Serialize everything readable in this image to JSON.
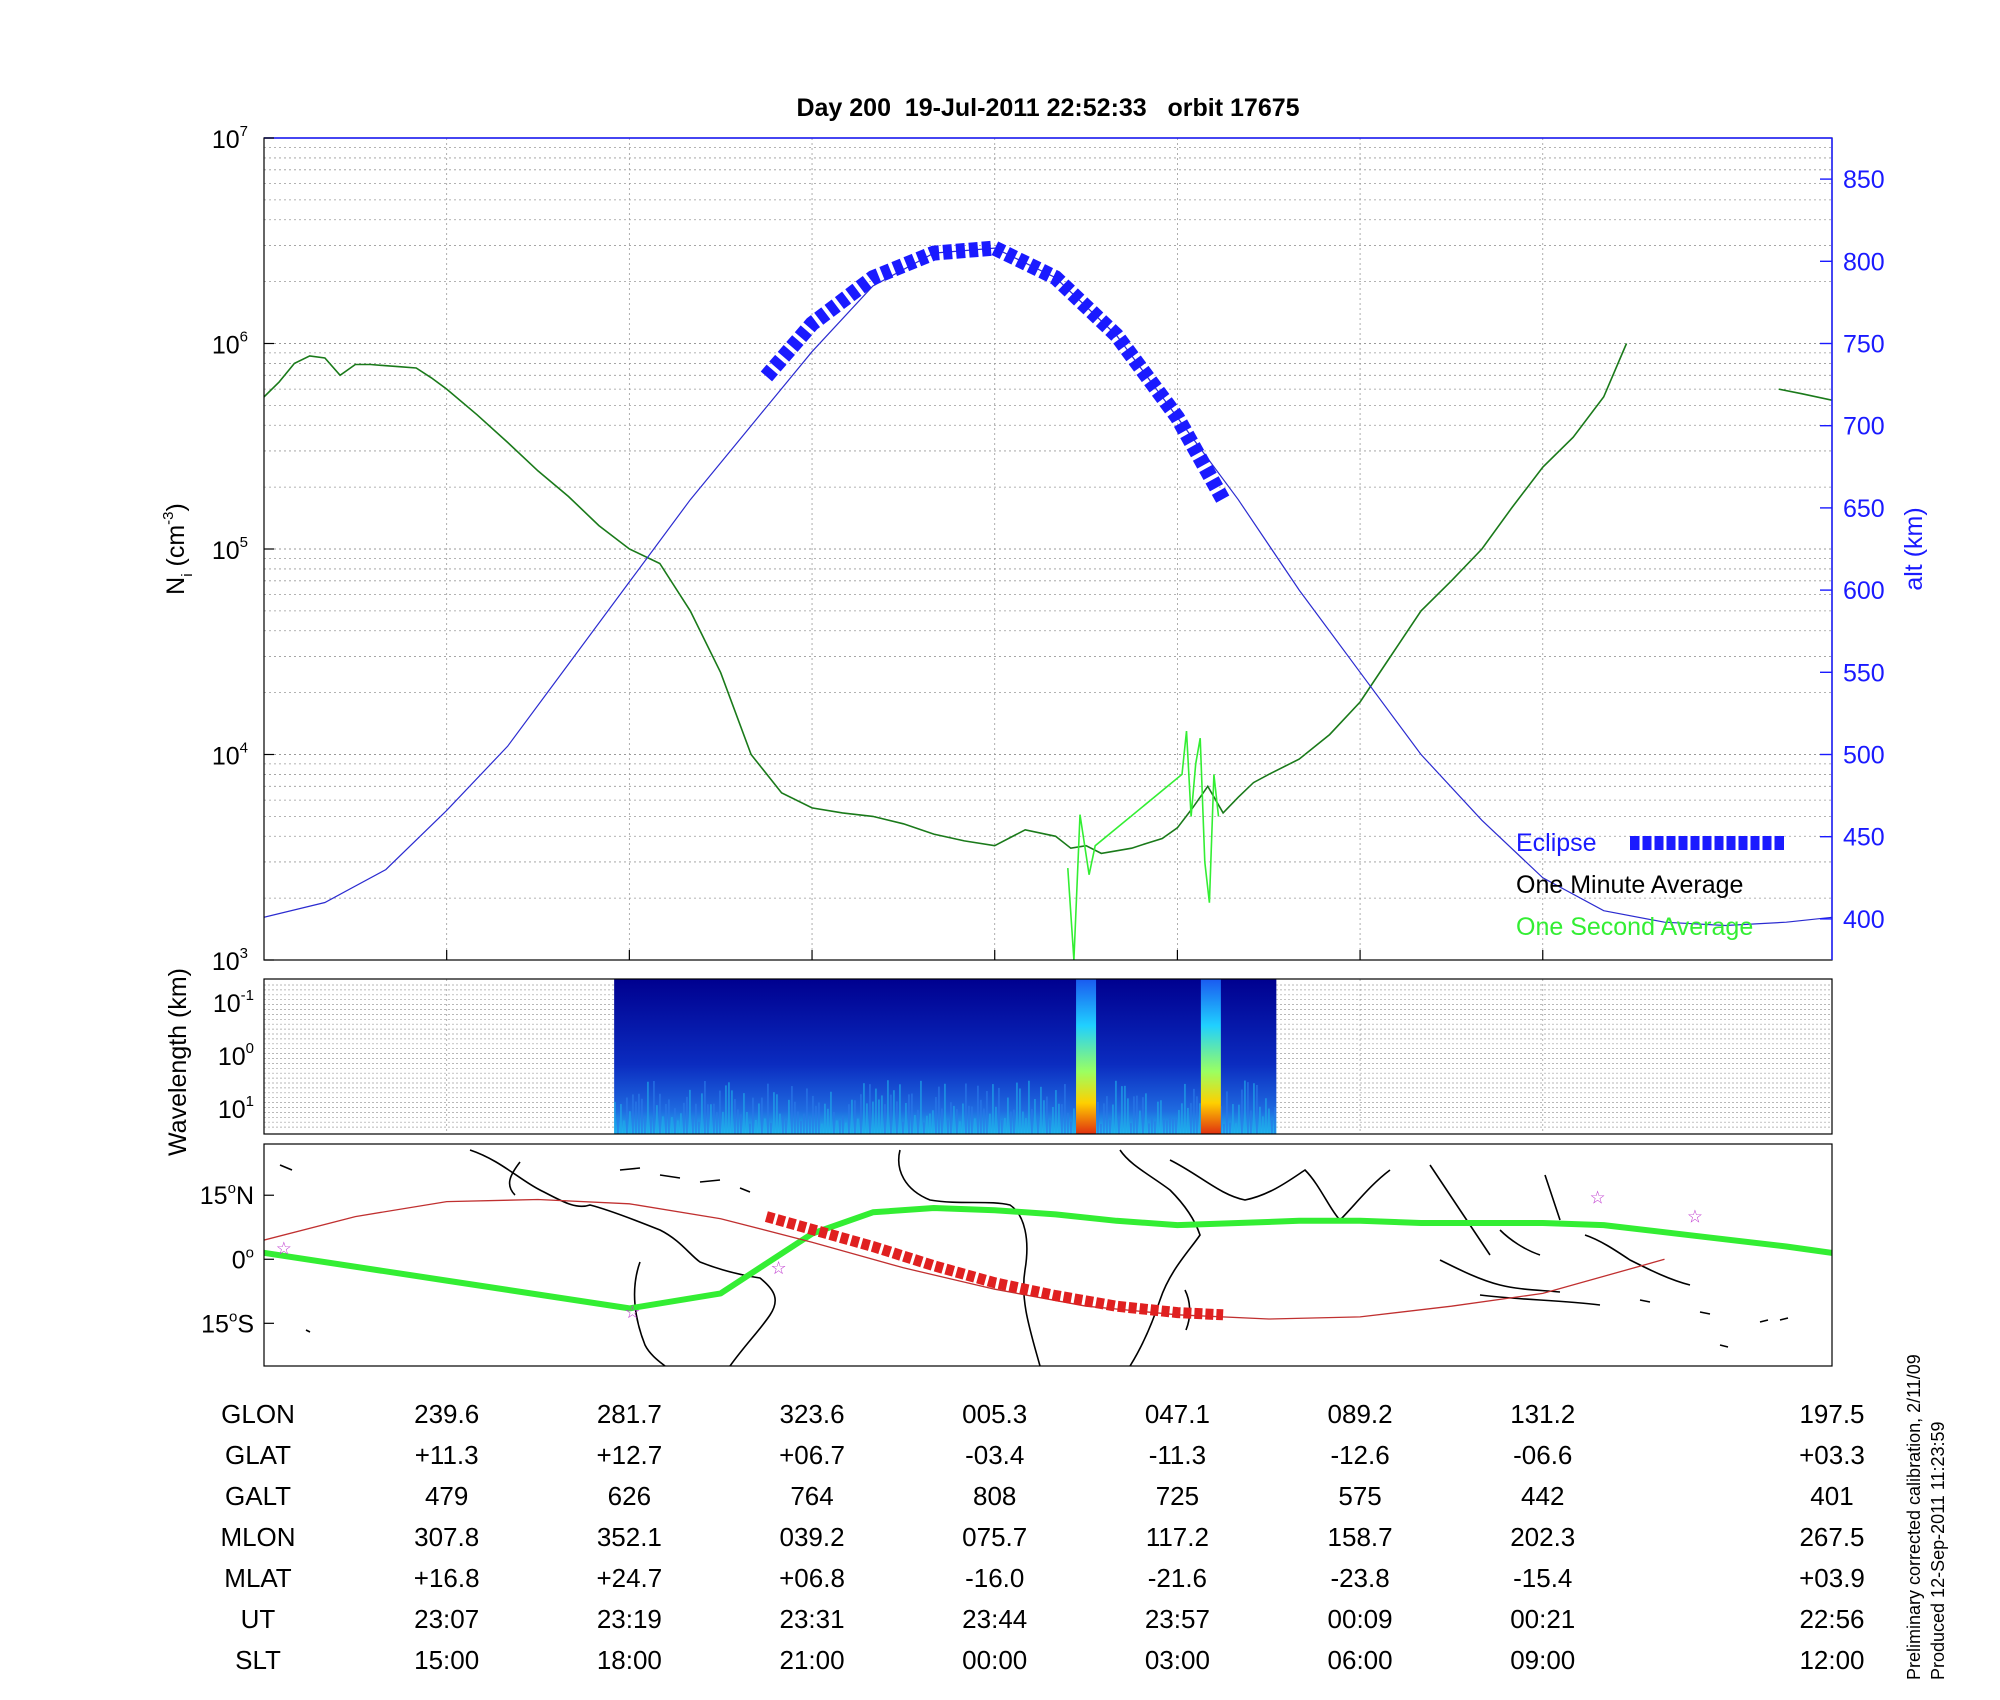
{
  "chart_data": [
    {
      "type": "line",
      "title": "Day 200  19-Jul-2011 22:52:33   orbit 17675",
      "ylabel_left": "N",
      "ylabel_left_sub": "i",
      "ylabel_left_unit_pre": "(cm",
      "ylabel_left_unit_exp": "-3",
      "ylabel_left_unit_post": ")",
      "ylabel_right": "alt (km)",
      "yscale_left": "log",
      "ylim_left": [
        1000,
        10000000
      ],
      "yticks_left": [
        {
          "base": "10",
          "exp": "3"
        },
        {
          "base": "10",
          "exp": "4"
        },
        {
          "base": "10",
          "exp": "5"
        },
        {
          "base": "10",
          "exp": "6"
        },
        {
          "base": "10",
          "exp": "7"
        }
      ],
      "ylim_right": [
        375,
        875
      ],
      "yticks_right": [
        "400",
        "450",
        "500",
        "550",
        "600",
        "650",
        "700",
        "750",
        "800",
        "850"
      ],
      "xlim_minutes": [
        0,
        103
      ],
      "grid": true,
      "legend_placement": "bottom-right",
      "legend": [
        {
          "label": "Eclipse",
          "color": "#1a1aff"
        },
        {
          "label": "One Minute Average",
          "color": "#000000"
        },
        {
          "label": "One Second Average",
          "color": "#33ee33"
        }
      ],
      "series": [
        {
          "name": "One Minute Average",
          "color": "#1a7a1a",
          "y_axis": "left",
          "x": [
            0,
            1,
            2,
            3,
            4,
            5,
            6,
            7,
            8,
            9,
            10,
            11,
            12,
            14,
            16,
            18,
            20,
            22,
            24,
            26,
            28,
            30,
            32,
            34,
            36,
            38,
            40,
            42,
            44,
            46,
            48,
            50,
            52,
            53,
            54,
            55,
            56,
            57,
            58,
            59,
            60,
            61,
            62,
            63,
            64,
            65,
            66,
            68,
            70,
            72,
            74,
            76,
            78,
            80,
            82,
            84,
            86,
            88,
            89.5
          ],
          "y": [
            550000,
            650000,
            800000,
            870000,
            850000,
            700000,
            790000,
            790000,
            780000,
            770000,
            760000,
            680000,
            600000,
            450000,
            330000,
            240000,
            180000,
            130000,
            100000,
            85000,
            50000,
            25000,
            10000,
            6500,
            5500,
            5200,
            5000,
            4600,
            4100,
            3800,
            3600,
            4300,
            4000,
            3500,
            3600,
            3300,
            3400,
            3500,
            3700,
            3900,
            4400,
            5500,
            7000,
            5200,
            6200,
            7300,
            8000,
            9500,
            12500,
            18000,
            30000,
            50000,
            70000,
            100000,
            160000,
            250000,
            350000,
            550000,
            1000000
          ]
        },
        {
          "name": "One Minute Average",
          "color": "#1a7a1a",
          "y_axis": "left",
          "x": [
            99.5,
            101,
            103
          ],
          "y": [
            600000,
            570000,
            530000
          ]
        },
        {
          "name": "One Second Average",
          "color": "#33ee33",
          "y_axis": "left",
          "x": [
            52.8,
            53.2,
            53.6,
            54.2,
            54.6,
            60.3,
            60.6,
            60.9,
            61.2,
            61.5,
            61.8,
            62.1,
            62.4,
            62.7
          ],
          "y": [
            2800,
            1000,
            5100,
            2600,
            3600,
            8000,
            13000,
            5000,
            9000,
            12000,
            3000,
            1900,
            8000,
            5000
          ]
        },
        {
          "name": "alt",
          "color": "#2b2bd0",
          "y_axis": "right",
          "x": [
            0,
            4,
            8,
            12,
            16,
            20,
            24,
            28,
            32,
            36,
            40,
            44,
            48,
            52,
            56,
            60,
            64,
            68,
            72,
            76,
            80,
            84,
            88,
            92,
            96,
            100,
            103
          ],
          "y": [
            401,
            410,
            430,
            466,
            505,
            555,
            605,
            655,
            700,
            745,
            785,
            805,
            808,
            790,
            755,
            705,
            655,
            600,
            550,
            500,
            460,
            425,
            405,
            398,
            396,
            398,
            401
          ]
        },
        {
          "name": "Eclipse",
          "color": "#1a1aff",
          "y_axis": "right",
          "x": [
            33,
            36,
            40,
            44,
            48,
            52,
            56,
            60,
            63
          ],
          "y": [
            730,
            762,
            790,
            805,
            808,
            790,
            755,
            705,
            655
          ]
        }
      ]
    },
    {
      "type": "heatmap",
      "ylabel": "Wavelength (km)",
      "yticks": [
        {
          "base": "10",
          "exp": "-1"
        },
        {
          "base": "10",
          "exp": "0"
        },
        {
          "base": "10",
          "exp": "1"
        }
      ],
      "data_span_minutes": [
        23,
        66.5
      ],
      "hotspots_minutes": [
        54,
        62.2
      ]
    },
    {
      "type": "map",
      "yticks": [
        {
          "deg": "15",
          "hemi": "N"
        },
        {
          "deg": "0",
          "hemi": ""
        },
        {
          "deg": "15",
          "hemi": "S"
        }
      ],
      "ylim_deg": [
        -25,
        27
      ],
      "tracks": [
        {
          "name": "magnetic-equator",
          "color": "#33ee33",
          "x": [
            0,
            12,
            24,
            30,
            33,
            36,
            40,
            44,
            48,
            52,
            56,
            60,
            64,
            68,
            72,
            76,
            80,
            84,
            88,
            94,
            100,
            103
          ],
          "y": [
            1.5,
            -5,
            -11.5,
            -8,
            -1,
            6,
            11,
            12,
            11.5,
            10.5,
            9,
            8,
            8.5,
            9,
            9,
            8.5,
            8.5,
            8.5,
            8,
            5.5,
            3,
            1.5
          ]
        },
        {
          "name": "orbit-track",
          "color": "#c03030",
          "x": [
            0,
            6,
            12,
            18,
            24,
            30,
            36,
            42,
            48,
            54,
            60,
            66,
            72,
            78,
            84,
            92
          ],
          "y": [
            4.5,
            10,
            13.5,
            14,
            13,
            9.5,
            4,
            -2,
            -7,
            -11,
            -13,
            -14,
            -13.5,
            -11,
            -8,
            0
          ]
        },
        {
          "name": "eclipse-segment",
          "color": "#e02020",
          "x": [
            33,
            36,
            40,
            44,
            48,
            52,
            56,
            60,
            63
          ],
          "y": [
            10,
            7,
            3,
            -1.5,
            -5.5,
            -8.5,
            -11,
            -12.5,
            -13
          ]
        }
      ],
      "stars": [
        {
          "x": 1.3,
          "y": 2.5
        },
        {
          "x": 24.2,
          "y": -12.3
        },
        {
          "x": 33.8,
          "y": -2
        },
        {
          "x": 87.6,
          "y": 14.5
        },
        {
          "x": 94,
          "y": 10
        }
      ]
    }
  ],
  "table": {
    "rows": [
      {
        "label": "GLON",
        "values": [
          "239.6",
          "281.7",
          "323.6",
          "005.3",
          "047.1",
          "089.2",
          "131.2",
          "197.5"
        ]
      },
      {
        "label": "GLAT",
        "values": [
          "+11.3",
          "+12.7",
          "+06.7",
          "-03.4",
          "-11.3",
          "-12.6",
          "-06.6",
          "+03.3"
        ]
      },
      {
        "label": "GALT",
        "values": [
          "479",
          "626",
          "764",
          "808",
          "725",
          "575",
          "442",
          "401"
        ]
      },
      {
        "label": "MLON",
        "values": [
          "307.8",
          "352.1",
          "039.2",
          "075.7",
          "117.2",
          "158.7",
          "202.3",
          "267.5"
        ]
      },
      {
        "label": "MLAT",
        "values": [
          "+16.8",
          "+24.7",
          "+06.8",
          "-16.0",
          "-21.6",
          "-23.8",
          "-15.4",
          "+03.9"
        ]
      },
      {
        "label": "UT",
        "values": [
          "23:07",
          "23:19",
          "23:31",
          "23:44",
          "23:57",
          "00:09",
          "00:21",
          "22:56"
        ]
      },
      {
        "label": "SLT",
        "values": [
          "15:00",
          "18:00",
          "21:00",
          "00:00",
          "03:00",
          "06:00",
          "09:00",
          "12:00"
        ]
      }
    ],
    "column_minutes": [
      12,
      24,
      36,
      48,
      60,
      72,
      84,
      103
    ]
  },
  "notes": {
    "calibration": "Preliminary corrected calibration, 2/11/09",
    "produced": "Produced 12-Sep-2011 11:23:59"
  }
}
